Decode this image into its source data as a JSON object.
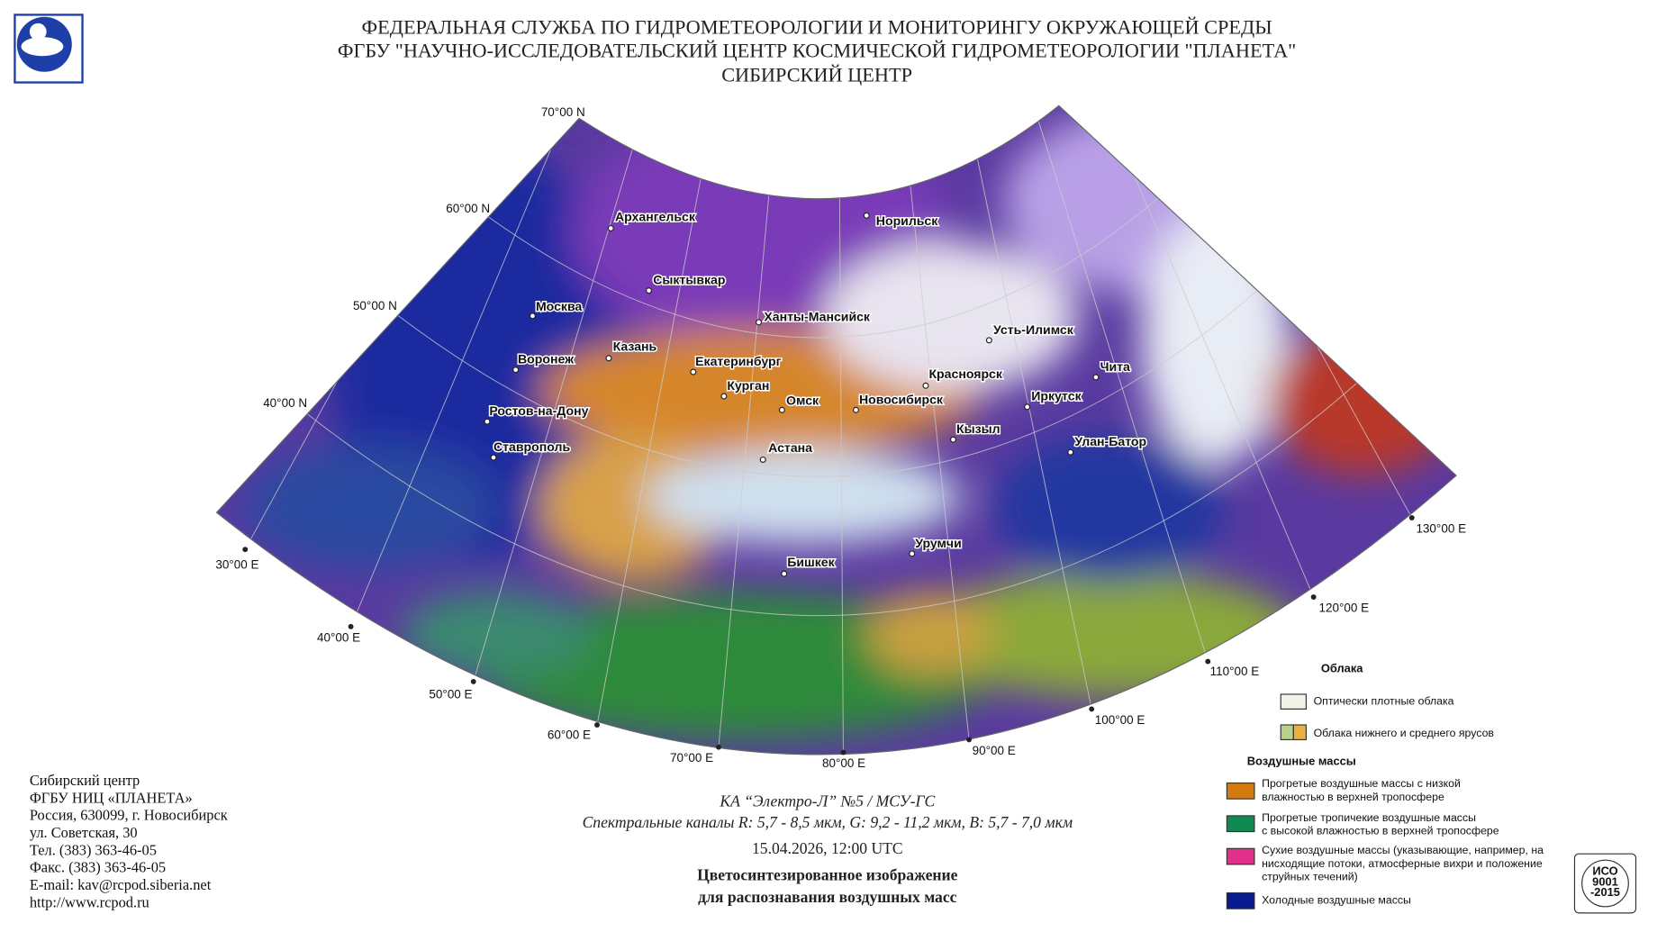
{
  "header": {
    "lines": [
      "ФЕДЕРАЛЬНАЯ СЛУЖБА ПО ГИДРОМЕТЕОРОЛОГИИ И МОНИТОРИНГУ ОКРУЖАЮЩЕЙ СРЕДЫ",
      "ФГБУ \"НАУЧНО-ИССЛЕДОВАТЕЛЬСКИЙ ЦЕНТР КОСМИЧЕСКОЙ ГИДРОМЕТЕОРОЛОГИИ \"ПЛАНЕТА\"",
      "СИБИРСКИЙ ЦЕНТР"
    ]
  },
  "map": {
    "lat_labels": [
      "70°00 N",
      "60°00 N",
      "50°00 N",
      "40°00 N"
    ],
    "lon_labels": [
      "30°00 E",
      "40°00 E",
      "50°00 E",
      "60°00 E",
      "70°00 E",
      "80°00 E",
      "90°00 E",
      "100°00 E",
      "110°00 E",
      "120°00 E",
      "130°00 E"
    ],
    "cities": [
      "Архангельск",
      "Сыктывкар",
      "Москва",
      "Казань",
      "Воронеж",
      "Ростов-на-Дону",
      "Ставрополь",
      "Екатеринбург",
      "Курган",
      "Омск",
      "Новосибирск",
      "Ханты-Мансийск",
      "Норильск",
      "Астана",
      "Красноярск",
      "Усть-Илимск",
      "Иркутск",
      "Чита",
      "Кызыл",
      "Улан-Батор",
      "Бишкек",
      "Урумчи"
    ]
  },
  "footer": {
    "address": [
      "Сибирский центр",
      "ФГБУ НИЦ «ПЛАНЕТА»",
      "Россия, 630099, г. Новосибирск",
      "ул. Советская, 30",
      "Тел. (383) 363-46-05",
      "Факс. (383) 363-46-05",
      "E-mail: kav@rcpod.siberia.net",
      "http://www.rcpod.ru"
    ],
    "caption": [
      "КА “Электро-Л” №5 / МСУ-ГС",
      "Спектральные каналы R: 5,7 - 8,5 мкм, G: 9,2 - 11,2 мкм, B: 5,7 - 7,0 мкм"
    ],
    "date": "15.04.2026, 12:00 UTC",
    "title": [
      "Цветосинтезированное изображение",
      "для распознавания воздушных масс"
    ],
    "iso": [
      "ИСО",
      "9001",
      "-2015"
    ]
  },
  "legend": {
    "clouds_title": "Облака",
    "clouds": [
      "Оптически плотные облака",
      "Облака нижнего и среднего ярусов"
    ],
    "air_title": "Воздушные массы",
    "air": [
      [
        "Прогретые воздушные массы с низкой",
        "влажностью в верхней тропосфере"
      ],
      [
        "Прогретые тропичекие воздушные массы",
        "с высокой влажностью в верхней тропосфере"
      ],
      [
        "Сухие воздушные массы (указывающие, например, на",
        "нисходящие потоки, атмосферные вихри и положение",
        "струйных течений)"
      ],
      [
        "Холодные воздушные массы"
      ]
    ]
  }
}
